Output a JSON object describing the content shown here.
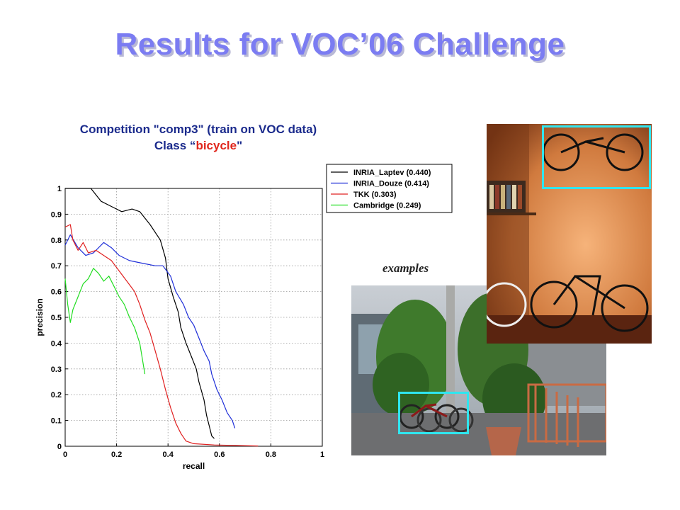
{
  "slide": {
    "title": "Results for VOC’06 Challenge",
    "competition_line": "Competition \"comp3\" (train on VOC data)",
    "class_prefix": "Class “",
    "class_name": "bicycle",
    "class_suffix": "\"",
    "examples_label": "examples"
  },
  "colors": {
    "title": "#7b7cf2",
    "heading": "#1a2a8c",
    "class_name": "#e0261c",
    "bbox": "#2fe6ef"
  },
  "images": [
    {
      "name": "bicycle-room-photo",
      "icon": "photo-bicycles-on-wall-and-floor"
    },
    {
      "name": "bicycle-street-photo",
      "icon": "photo-bicycles-parked-on-street"
    }
  ],
  "chart_data": {
    "type": "line",
    "xlabel": "recall",
    "ylabel": "precision",
    "xlim": [
      0,
      1
    ],
    "ylim": [
      0,
      1
    ],
    "grid": true,
    "legend_position": "top-right-outside",
    "xticks": [
      "0",
      "0.2",
      "0.4",
      "0.6",
      "0.8",
      "1"
    ],
    "yticks": [
      "0",
      "0.1",
      "0.2",
      "0.3",
      "0.4",
      "0.5",
      "0.6",
      "0.7",
      "0.8",
      "0.9",
      "1"
    ],
    "series": [
      {
        "name": "INRIA_Laptev (0.440)",
        "color": "#000000",
        "points": [
          [
            0,
            1
          ],
          [
            0.04,
            1
          ],
          [
            0.1,
            1
          ],
          [
            0.14,
            0.95
          ],
          [
            0.18,
            0.93
          ],
          [
            0.22,
            0.91
          ],
          [
            0.26,
            0.92
          ],
          [
            0.29,
            0.91
          ],
          [
            0.33,
            0.86
          ],
          [
            0.37,
            0.8
          ],
          [
            0.39,
            0.73
          ],
          [
            0.4,
            0.65
          ],
          [
            0.42,
            0.58
          ],
          [
            0.44,
            0.52
          ],
          [
            0.45,
            0.46
          ],
          [
            0.47,
            0.4
          ],
          [
            0.49,
            0.35
          ],
          [
            0.51,
            0.3
          ],
          [
            0.52,
            0.25
          ],
          [
            0.54,
            0.18
          ],
          [
            0.55,
            0.12
          ],
          [
            0.56,
            0.08
          ],
          [
            0.57,
            0.04
          ],
          [
            0.58,
            0.03
          ]
        ]
      },
      {
        "name": "INRIA_Douze (0.414)",
        "color": "#1f2fd8",
        "points": [
          [
            0,
            0.78
          ],
          [
            0.02,
            0.82
          ],
          [
            0.05,
            0.77
          ],
          [
            0.08,
            0.74
          ],
          [
            0.11,
            0.75
          ],
          [
            0.15,
            0.79
          ],
          [
            0.18,
            0.77
          ],
          [
            0.21,
            0.74
          ],
          [
            0.25,
            0.72
          ],
          [
            0.3,
            0.71
          ],
          [
            0.35,
            0.7
          ],
          [
            0.38,
            0.7
          ],
          [
            0.41,
            0.66
          ],
          [
            0.43,
            0.6
          ],
          [
            0.46,
            0.55
          ],
          [
            0.48,
            0.5
          ],
          [
            0.5,
            0.47
          ],
          [
            0.52,
            0.42
          ],
          [
            0.54,
            0.37
          ],
          [
            0.56,
            0.33
          ],
          [
            0.57,
            0.28
          ],
          [
            0.59,
            0.22
          ],
          [
            0.61,
            0.18
          ],
          [
            0.63,
            0.13
          ],
          [
            0.65,
            0.1
          ],
          [
            0.66,
            0.07
          ]
        ]
      },
      {
        "name": "TKK (0.303)",
        "color": "#e02020",
        "points": [
          [
            0,
            0.85
          ],
          [
            0.02,
            0.86
          ],
          [
            0.03,
            0.8
          ],
          [
            0.05,
            0.76
          ],
          [
            0.07,
            0.79
          ],
          [
            0.09,
            0.75
          ],
          [
            0.12,
            0.76
          ],
          [
            0.15,
            0.74
          ],
          [
            0.18,
            0.72
          ],
          [
            0.21,
            0.68
          ],
          [
            0.24,
            0.64
          ],
          [
            0.27,
            0.6
          ],
          [
            0.29,
            0.55
          ],
          [
            0.31,
            0.49
          ],
          [
            0.33,
            0.44
          ],
          [
            0.35,
            0.37
          ],
          [
            0.37,
            0.3
          ],
          [
            0.39,
            0.22
          ],
          [
            0.41,
            0.15
          ],
          [
            0.43,
            0.09
          ],
          [
            0.45,
            0.05
          ],
          [
            0.47,
            0.02
          ],
          [
            0.5,
            0.01
          ],
          [
            0.58,
            0.005
          ],
          [
            0.75,
            0.001
          ]
        ]
      },
      {
        "name": "Cambridge (0.249)",
        "color": "#22dd22",
        "points": [
          [
            0,
            0.65
          ],
          [
            0.01,
            0.55
          ],
          [
            0.02,
            0.48
          ],
          [
            0.03,
            0.53
          ],
          [
            0.05,
            0.58
          ],
          [
            0.07,
            0.63
          ],
          [
            0.09,
            0.65
          ],
          [
            0.11,
            0.69
          ],
          [
            0.13,
            0.67
          ],
          [
            0.15,
            0.64
          ],
          [
            0.17,
            0.66
          ],
          [
            0.19,
            0.62
          ],
          [
            0.21,
            0.58
          ],
          [
            0.23,
            0.55
          ],
          [
            0.25,
            0.5
          ],
          [
            0.27,
            0.46
          ],
          [
            0.29,
            0.4
          ],
          [
            0.3,
            0.34
          ],
          [
            0.31,
            0.28
          ]
        ]
      }
    ]
  }
}
